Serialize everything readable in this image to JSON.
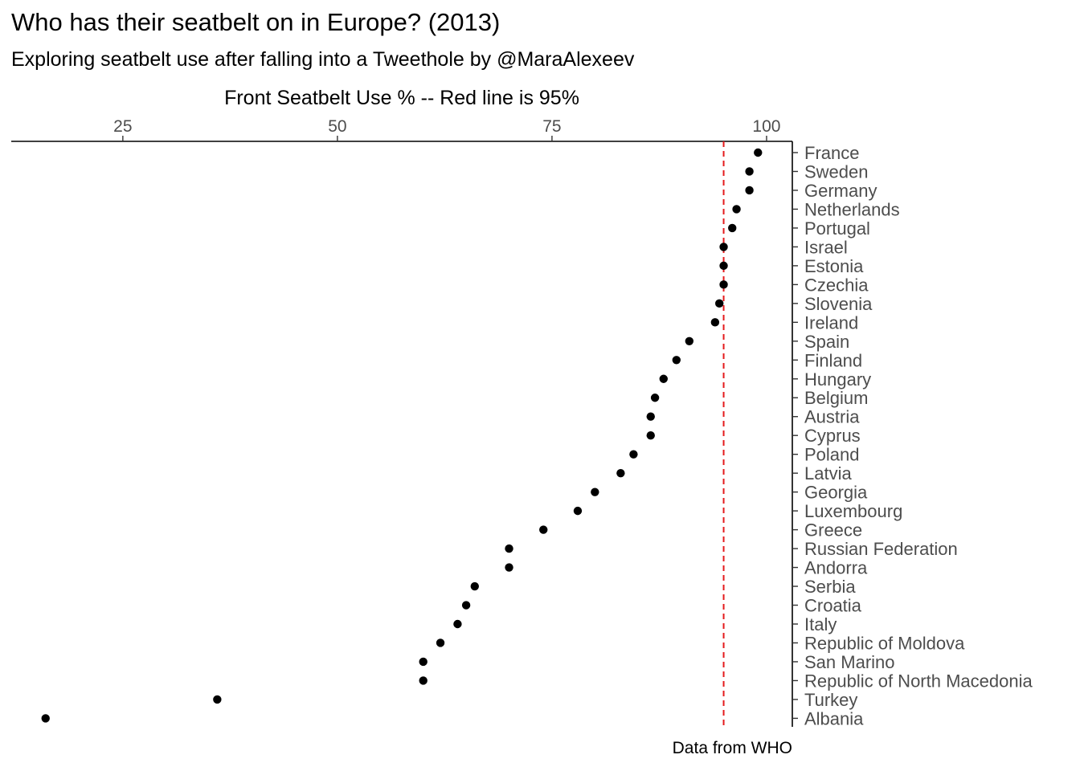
{
  "chart_data": {
    "type": "scatter",
    "title": "Who has their seatbelt on in Europe? (2013)",
    "subtitle": "Exploring seatbelt use after falling into a Tweethole by @MaraAlexeev",
    "xlabel": "Front Seatbelt Use % -- Red line is 95%",
    "ylabel": "",
    "caption": "Data from WHO",
    "x_axis_position": "top",
    "y_axis_position": "right",
    "xlim": [
      12,
      103
    ],
    "xticks": [
      25,
      50,
      75,
      100
    ],
    "reference_line": {
      "x": 95,
      "color": "#e41a1c",
      "style": "dashed"
    },
    "grid": false,
    "categories": [
      "France",
      "Sweden",
      "Germany",
      "Netherlands",
      "Portugal",
      "Israel",
      "Estonia",
      "Czechia",
      "Slovenia",
      "Ireland",
      "Spain",
      "Finland",
      "Hungary",
      "Belgium",
      "Austria",
      "Cyprus",
      "Poland",
      "Latvia",
      "Georgia",
      "Luxembourg",
      "Greece",
      "Russian Federation",
      "Andorra",
      "Serbia",
      "Croatia",
      "Italy",
      "Republic of Moldova",
      "San Marino",
      "Republic of North Macedonia",
      "Turkey",
      "Albania"
    ],
    "values": [
      99,
      98,
      98,
      96.5,
      96,
      95,
      95,
      95,
      94.5,
      94,
      91,
      89.5,
      88,
      87,
      86.5,
      86.5,
      84.5,
      83,
      80,
      78,
      74,
      70,
      70,
      66,
      65,
      64,
      62,
      60,
      60,
      36,
      16
    ]
  }
}
